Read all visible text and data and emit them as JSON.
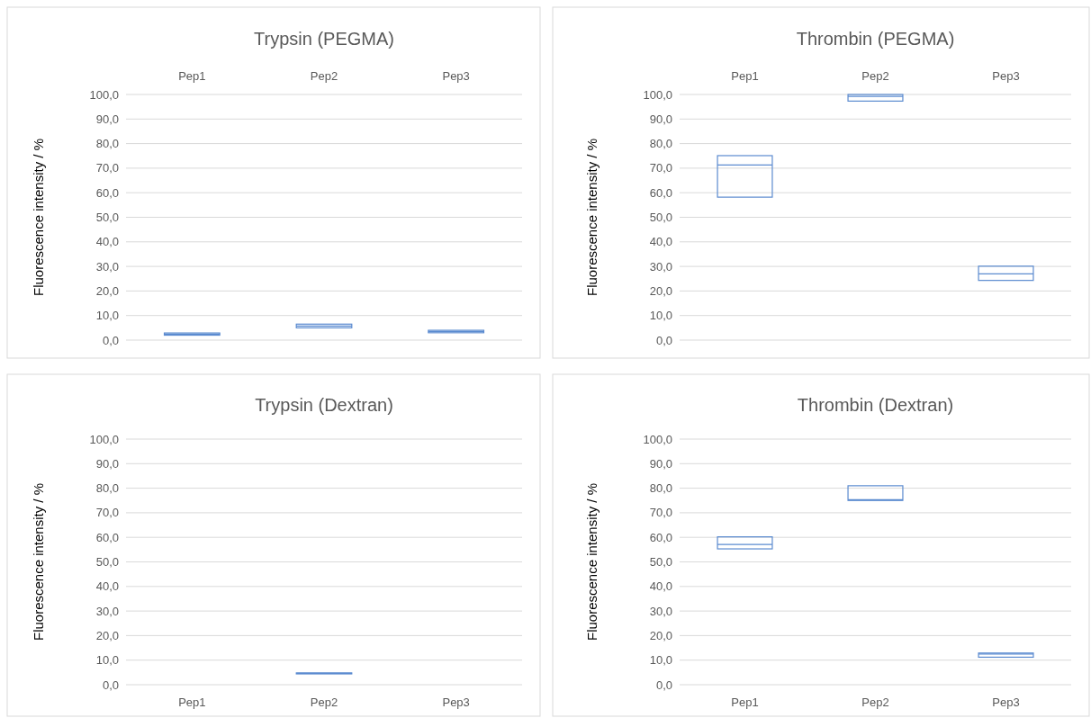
{
  "chart_data": [
    {
      "type": "box",
      "title": "Trypsin (PEGMA)",
      "ylabel": "Fluorescence intensity / %",
      "categories": [
        "Pep1",
        "Pep2",
        "Pep3"
      ],
      "color": "#5b8bd0",
      "grid": "y",
      "ylim": [
        0,
        100
      ],
      "yticks": [
        {
          "value": 0,
          "label": "0,0"
        },
        {
          "value": 10,
          "label": "10,0"
        },
        {
          "value": 20,
          "label": "20,0"
        },
        {
          "value": 30,
          "label": "30,0"
        },
        {
          "value": 40,
          "label": "40,0"
        },
        {
          "value": 50,
          "label": "50,0"
        },
        {
          "value": 60,
          "label": "60,0"
        },
        {
          "value": 70,
          "label": "70,0"
        },
        {
          "value": 80,
          "label": "80,0"
        },
        {
          "value": 90,
          "label": "90,0"
        },
        {
          "value": 100,
          "label": "100,0"
        }
      ],
      "boxes": [
        {
          "low": 2.0,
          "q1": 2.0,
          "median": 2.4,
          "q3": 2.9,
          "high": 2.9
        },
        {
          "low": 5.0,
          "q1": 5.0,
          "median": 5.7,
          "q3": 6.5,
          "high": 6.5
        },
        {
          "low": 3.0,
          "q1": 3.0,
          "median": 3.5,
          "q3": 4.0,
          "high": 4.0
        }
      ]
    },
    {
      "type": "box",
      "title": "Thrombin (PEGMA)",
      "ylabel": "Fluorescence intensity / %",
      "categories": [
        "Pep1",
        "Pep2",
        "Pep3"
      ],
      "color": "#5b8bd0",
      "grid": "y",
      "ylim": [
        0,
        100
      ],
      "yticks": [
        {
          "value": 0,
          "label": "0,0"
        },
        {
          "value": 10,
          "label": "10,0"
        },
        {
          "value": 20,
          "label": "20,0"
        },
        {
          "value": 30,
          "label": "30,0"
        },
        {
          "value": 40,
          "label": "40,0"
        },
        {
          "value": 50,
          "label": "50,0"
        },
        {
          "value": 60,
          "label": "60,0"
        },
        {
          "value": 70,
          "label": "70,0"
        },
        {
          "value": 80,
          "label": "80,0"
        },
        {
          "value": 90,
          "label": "90,0"
        },
        {
          "value": 100,
          "label": "100,0"
        }
      ],
      "boxes": [
        {
          "low": 58.2,
          "q1": 58.2,
          "median": 71.3,
          "q3": 75.1,
          "high": 75.1
        },
        {
          "low": 97.3,
          "q1": 97.3,
          "median": 99.2,
          "q3": 100,
          "high": 100
        },
        {
          "low": 24.3,
          "q1": 24.3,
          "median": 27.0,
          "q3": 30.1,
          "high": 30.1
        }
      ]
    },
    {
      "type": "box",
      "title": "Trypsin (Dextran)",
      "ylabel": "Fluorescence intensity / %",
      "categories": [
        "Pep1",
        "Pep2",
        "Pep3"
      ],
      "color": "#5b8bd0",
      "grid": "y",
      "ylim": [
        0,
        100
      ],
      "yticks": [
        {
          "value": 0,
          "label": "0,0"
        },
        {
          "value": 10,
          "label": "10,0"
        },
        {
          "value": 20,
          "label": "20,0"
        },
        {
          "value": 30,
          "label": "30,0"
        },
        {
          "value": 40,
          "label": "40,0"
        },
        {
          "value": 50,
          "label": "50,0"
        },
        {
          "value": 60,
          "label": "60,0"
        },
        {
          "value": 70,
          "label": "70,0"
        },
        {
          "value": 80,
          "label": "80,0"
        },
        {
          "value": 90,
          "label": "90,0"
        },
        {
          "value": 100,
          "label": "100,0"
        }
      ],
      "boxes": [
        null,
        {
          "low": 4.4,
          "q1": 4.4,
          "median": 4.6,
          "q3": 4.8,
          "high": 4.8
        },
        null
      ]
    },
    {
      "type": "box",
      "title": "Thrombin (Dextran)",
      "ylabel": "Fluorescence intensity / %",
      "categories": [
        "Pep1",
        "Pep2",
        "Pep3"
      ],
      "color": "#5b8bd0",
      "grid": "y",
      "ylim": [
        0,
        100
      ],
      "yticks": [
        {
          "value": 0,
          "label": "0,0"
        },
        {
          "value": 10,
          "label": "10,0"
        },
        {
          "value": 20,
          "label": "20,0"
        },
        {
          "value": 30,
          "label": "30,0"
        },
        {
          "value": 40,
          "label": "40,0"
        },
        {
          "value": 50,
          "label": "50,0"
        },
        {
          "value": 60,
          "label": "60,0"
        },
        {
          "value": 70,
          "label": "70,0"
        },
        {
          "value": 80,
          "label": "80,0"
        },
        {
          "value": 90,
          "label": "90,0"
        },
        {
          "value": 100,
          "label": "100,0"
        }
      ],
      "boxes": [
        {
          "low": 55.3,
          "q1": 55.3,
          "median": 57.1,
          "q3": 60.2,
          "high": 60.2
        },
        {
          "low": 75.0,
          "q1": 75.0,
          "median": 75.3,
          "q3": 81.0,
          "high": 81.0
        },
        {
          "low": 11.2,
          "q1": 11.2,
          "median": 12.5,
          "q3": 12.9,
          "high": 12.9
        }
      ]
    }
  ]
}
